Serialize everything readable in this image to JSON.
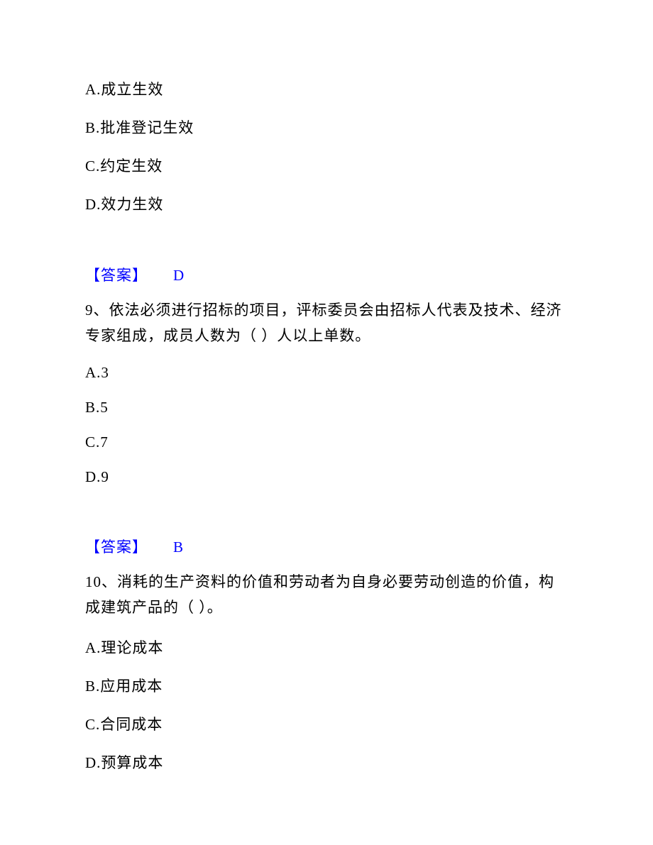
{
  "q8": {
    "options": {
      "a": "A.成立生效",
      "b": "B.批准登记生效",
      "c": "C.约定生效",
      "d": "D.效力生效"
    },
    "answer_label": "【答案】",
    "answer_value": "D"
  },
  "q9": {
    "text": "9、依法必须进行招标的项目，评标委员会由招标人代表及技术、经济专家组成，成员人数为（ ）人以上单数。",
    "options": {
      "a": "A.3",
      "b": "B.5",
      "c": "C.7",
      "d": "D.9"
    },
    "answer_label": "【答案】",
    "answer_value": "B"
  },
  "q10": {
    "text": "10、消耗的生产资料的价值和劳动者为自身必要劳动创造的价值，构成建筑产品的（ ）。",
    "options": {
      "a": "A.理论成本",
      "b": "B.应用成本",
      "c": "C.合同成本",
      "d": "D.预算成本"
    }
  }
}
